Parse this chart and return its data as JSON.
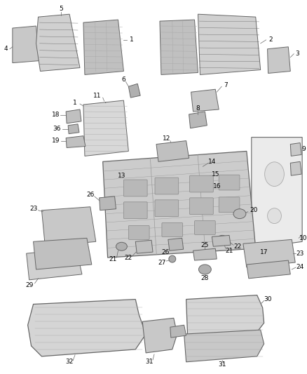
{
  "bg_color": "#ffffff",
  "line_color": "#666666",
  "label_color": "#000000",
  "fig_width": 4.38,
  "fig_height": 5.33,
  "dpi": 100,
  "label_fontsize": 6.5
}
